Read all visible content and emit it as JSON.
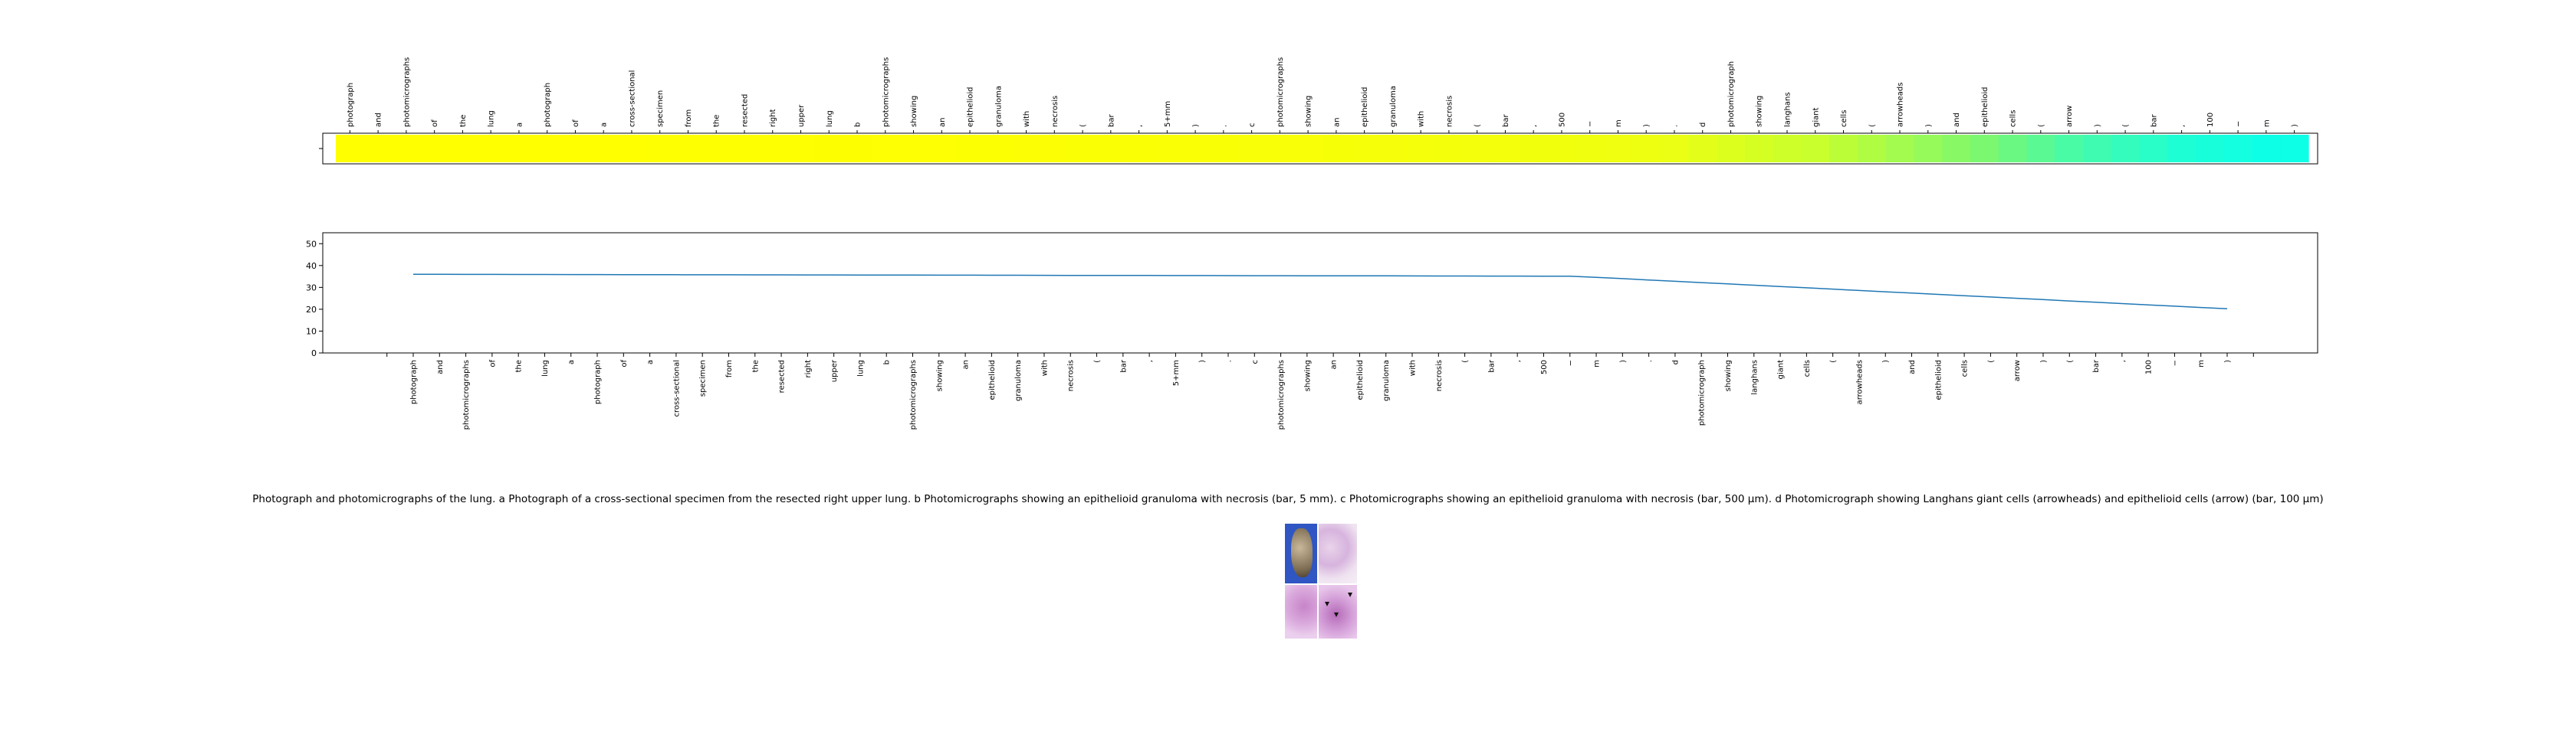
{
  "caption": "Photograph and photomicrographs of the lung. a Photograph of a cross-sectional specimen from the resected right upper lung. b Photomicrographs showing an epithelioid granuloma with necrosis (bar, 5 mm). c Photomicrographs showing an epithelioid granuloma with necrosis (bar, 500 μm). d Photomicrograph showing Langhans giant cells (arrowheads) and epithelioid cells (arrow) (bar, 100 μm)",
  "colors": {
    "line": "#1f77b4",
    "gradient_start": "#ffff00",
    "gradient_mid": "#c8ff2d",
    "gradient_end": "#0dffe6"
  },
  "chart_data": [
    {
      "type": "heatmap",
      "description_hidden": false,
      "tokens": [
        "photograph",
        "and",
        "photomicrographs",
        "of",
        "the",
        "lung",
        "a",
        "photograph",
        "of",
        "a",
        "cross-sectional",
        "specimen",
        "from",
        "the",
        "resected",
        "right",
        "upper",
        "lung",
        "b",
        "photomicrographs",
        "showing",
        "an",
        "epithelioid",
        "granuloma",
        "with",
        "necrosis",
        "(",
        "bar",
        ",",
        "5+mm",
        ")",
        ".",
        "c",
        "photomicrographs",
        "showing",
        "an",
        "epithelioid",
        "granuloma",
        "with",
        "necrosis",
        "(",
        "bar",
        ",",
        "500",
        "−",
        "m",
        ")",
        ".",
        "d",
        "photomicrograph",
        "showing",
        "langhans",
        "giant",
        "cells",
        "(",
        "arrowheads",
        ")",
        "and",
        "epithelioid",
        "cells",
        "(",
        "arrow",
        ")",
        "(",
        "bar",
        ",",
        "100",
        "−",
        "m",
        ")"
      ],
      "values": [
        0.0,
        0.0,
        0.0,
        0.0,
        0.0,
        0.01,
        0.01,
        0.01,
        0.01,
        0.01,
        0.01,
        0.02,
        0.02,
        0.02,
        0.03,
        0.03,
        0.03,
        0.04,
        0.04,
        0.05,
        0.05,
        0.06,
        0.07,
        0.07,
        0.08,
        0.09,
        0.1,
        0.11,
        0.12,
        0.13,
        0.14,
        0.15,
        0.16,
        0.18,
        0.19,
        0.21,
        0.22,
        0.24,
        0.26,
        0.28,
        0.3,
        0.32,
        0.34,
        0.37,
        0.39,
        0.42,
        0.45,
        0.47,
        0.5,
        0.53,
        0.56,
        0.59,
        0.62,
        0.65,
        0.68,
        0.71,
        0.74,
        0.77,
        0.8,
        0.83,
        0.86,
        0.89,
        0.91,
        0.93,
        0.95,
        0.97,
        0.98,
        0.99,
        1.0,
        1.0
      ],
      "yticks": [
        ""
      ]
    },
    {
      "type": "line",
      "categories": [
        "photograph",
        "and",
        "photomicrographs",
        "of",
        "the",
        "lung",
        "a",
        "photograph",
        "of",
        "a",
        "cross-sectional",
        "specimen",
        "from",
        "the",
        "resected",
        "right",
        "upper",
        "lung",
        "b",
        "photomicrographs",
        "showing",
        "an",
        "epithelioid",
        "granuloma",
        "with",
        "necrosis",
        "(",
        "bar",
        ",",
        "5+mm",
        ")",
        ".",
        "c",
        "photomicrographs",
        "showing",
        "an",
        "epithelioid",
        "granuloma",
        "with",
        "necrosis",
        "(",
        "bar",
        ",",
        "500",
        "−",
        "m",
        ")",
        ".",
        "d",
        "photomicrograph",
        "showing",
        "langhans",
        "giant",
        "cells",
        "(",
        "arrowheads",
        ")",
        "and",
        "epithelioid",
        "cells",
        "(",
        "arrow",
        ")",
        "(",
        "bar",
        ",",
        "100",
        "−",
        "m",
        ")"
      ],
      "values": [
        36.0,
        35.98,
        35.96,
        35.94,
        35.92,
        35.9,
        35.88,
        35.86,
        35.84,
        35.82,
        35.8,
        35.78,
        35.76,
        35.74,
        35.72,
        35.7,
        35.68,
        35.66,
        35.64,
        35.62,
        35.6,
        35.58,
        35.56,
        35.54,
        35.52,
        35.5,
        35.48,
        35.46,
        35.44,
        35.42,
        35.4,
        35.38,
        35.36,
        35.34,
        35.32,
        35.3,
        35.28,
        35.26,
        35.24,
        35.22,
        35.2,
        35.18,
        35.16,
        35.14,
        35.12,
        34.6,
        34.0,
        33.4,
        32.8,
        32.2,
        31.6,
        31.0,
        30.4,
        29.8,
        29.2,
        28.6,
        28.0,
        27.4,
        26.8,
        26.2,
        25.6,
        25.0,
        24.4,
        23.8,
        23.2,
        22.6,
        22.0,
        21.4,
        20.8,
        20.2
      ],
      "ylim": [
        0,
        55
      ],
      "yticks": [
        0,
        10,
        20,
        30,
        40,
        50
      ],
      "title": "",
      "xlabel": "",
      "ylabel": ""
    }
  ]
}
